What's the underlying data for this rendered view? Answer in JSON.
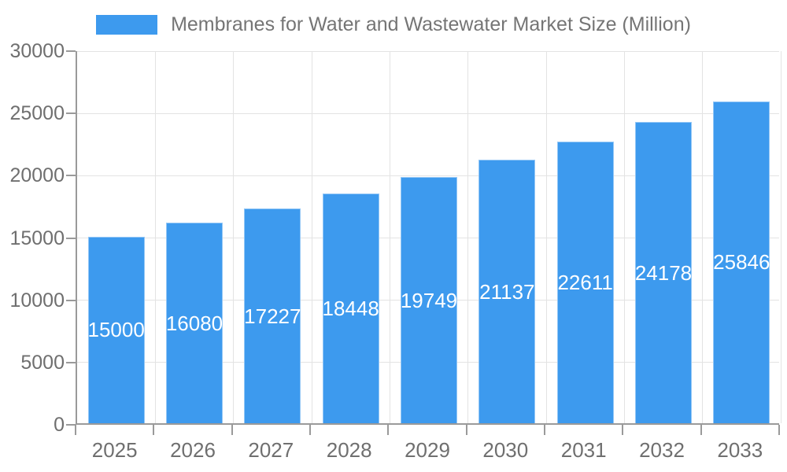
{
  "legend": {
    "label": "Membranes for Water and Wastewater Market Size (Million)"
  },
  "chart_data": {
    "type": "bar",
    "title": "Membranes for Water and Wastewater Market Size (Million)",
    "categories": [
      "2025",
      "2026",
      "2027",
      "2028",
      "2029",
      "2030",
      "2031",
      "2032",
      "2033"
    ],
    "values": [
      15000,
      16080,
      17227,
      18448,
      19749,
      21137,
      22611,
      24178,
      25846
    ],
    "xlabel": "",
    "ylabel": "",
    "ylim": [
      0,
      30000
    ],
    "y_ticks": [
      0,
      5000,
      10000,
      15000,
      20000,
      25000,
      30000
    ],
    "grid": true,
    "legend_position": "top",
    "colors": {
      "bar": "#3D9AEE",
      "bar_label": "#ffffff",
      "axis": "#9a9a9a",
      "gridline": "#e3e3e3",
      "tick_text": "#6f6f6f",
      "legend_text": "#757575",
      "background": "#ffffff"
    }
  }
}
